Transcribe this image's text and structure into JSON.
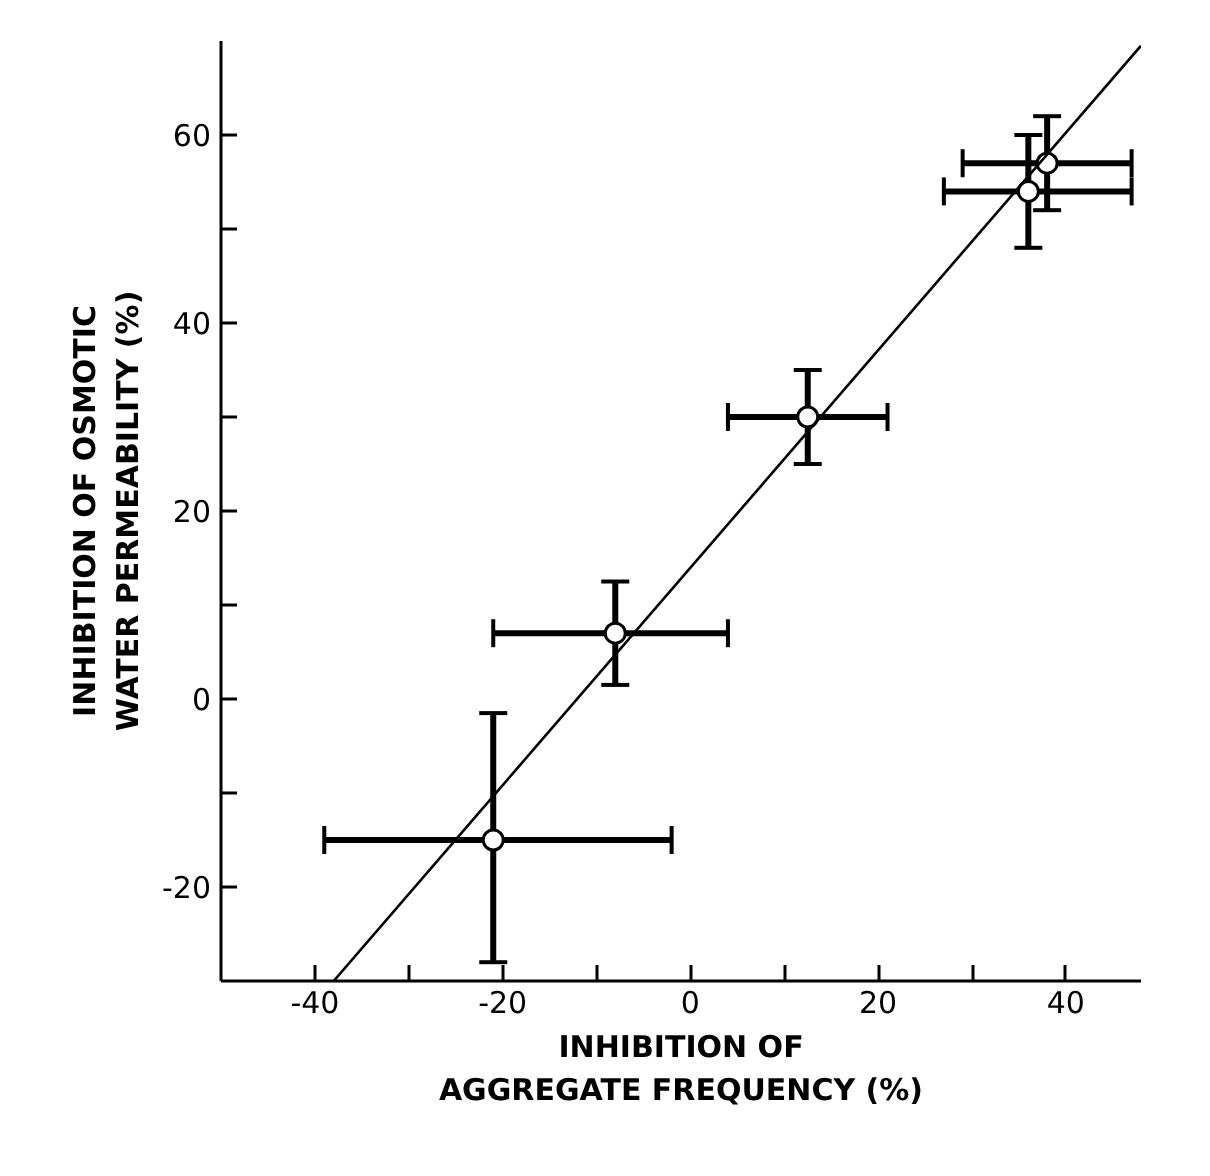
{
  "chart_data": {
    "type": "scatter",
    "xlabel": "INHIBITION OF\nAGGREGATE FREQUENCY (%)",
    "ylabel": "INHIBITION OF OSMOTIC\nWATER PERMEABILITY (%)",
    "xlim": [
      -50,
      48
    ],
    "ylim": [
      -30,
      70
    ],
    "xticks": [
      -40,
      {
        "value": -30,
        "label": null
      },
      -20,
      {
        "value": -10,
        "label": null
      },
      0,
      {
        "value": 10,
        "label": null
      },
      20,
      {
        "value": 30,
        "label": null
      },
      40
    ],
    "yticks": [
      -20,
      {
        "value": -10,
        "label": null
      },
      0,
      {
        "value": 10,
        "label": null
      },
      20,
      {
        "value": 30,
        "label": null
      },
      40,
      {
        "value": 50,
        "label": null
      },
      60
    ],
    "marker": "circle",
    "series": [
      {
        "color": "#000000",
        "x": [
          -21,
          -8,
          12.5,
          36,
          38
        ],
        "values": [
          -15,
          7,
          30,
          54,
          57
        ],
        "errors": [
          [
            -28,
            -1.5
          ],
          [
            1.5,
            12.5
          ],
          [
            25,
            35
          ],
          [
            48,
            60
          ],
          [
            52,
            62
          ]
        ],
        "xerrors": [
          [
            -39,
            -2
          ],
          [
            -21,
            4
          ],
          [
            4,
            21
          ],
          [
            27,
            47
          ],
          [
            29,
            47
          ]
        ]
      },
      {
        "type": "line",
        "marker": "none",
        "color": "#000000",
        "x": [
          -38,
          48
        ],
        "values": [
          -30,
          69.5
        ]
      }
    ]
  }
}
